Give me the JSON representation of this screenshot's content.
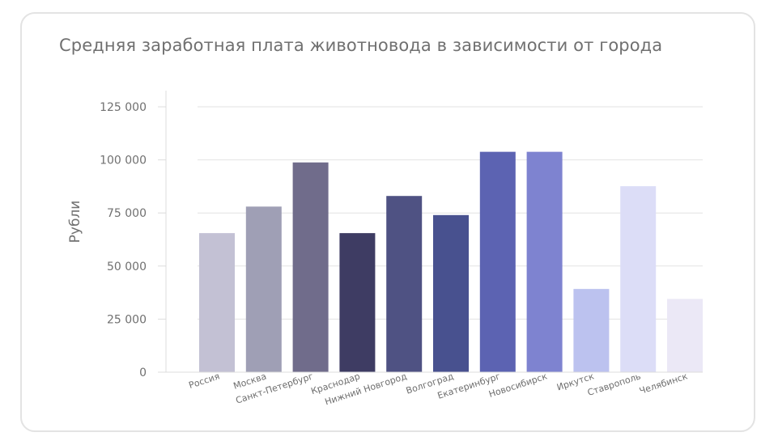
{
  "chart_data": {
    "type": "bar",
    "title": "Средняя заработная плата животновода в зависимости от города",
    "xlabel": "",
    "ylabel": "Рубли",
    "ylim": [
      0,
      125000
    ],
    "yticks": [
      0,
      25000,
      50000,
      75000,
      100000,
      125000
    ],
    "ytick_labels": [
      "0",
      "25 000",
      "50 000",
      "75 000",
      "100 000",
      "125 000"
    ],
    "grid": true,
    "legend": "none",
    "categories": [
      "Россия",
      "Москва",
      "Санкт-Петербург",
      "Краснодар",
      "Нижний Новгород",
      "Волгоград",
      "Екатеринбург",
      "Новосибирск",
      "Иркутск",
      "Ставрополь",
      "Челябинск"
    ],
    "values": [
      65500,
      78000,
      98800,
      65500,
      83000,
      74000,
      103800,
      103800,
      39200,
      87600,
      34500
    ],
    "colors": [
      "#c3c1d4",
      "#9f9fb5",
      "#706c8b",
      "#3e3c63",
      "#4f5283",
      "#48518f",
      "#5c63b2",
      "#7e83d0",
      "#bcc2ef",
      "#dcddf7",
      "#ebe8f6"
    ]
  }
}
